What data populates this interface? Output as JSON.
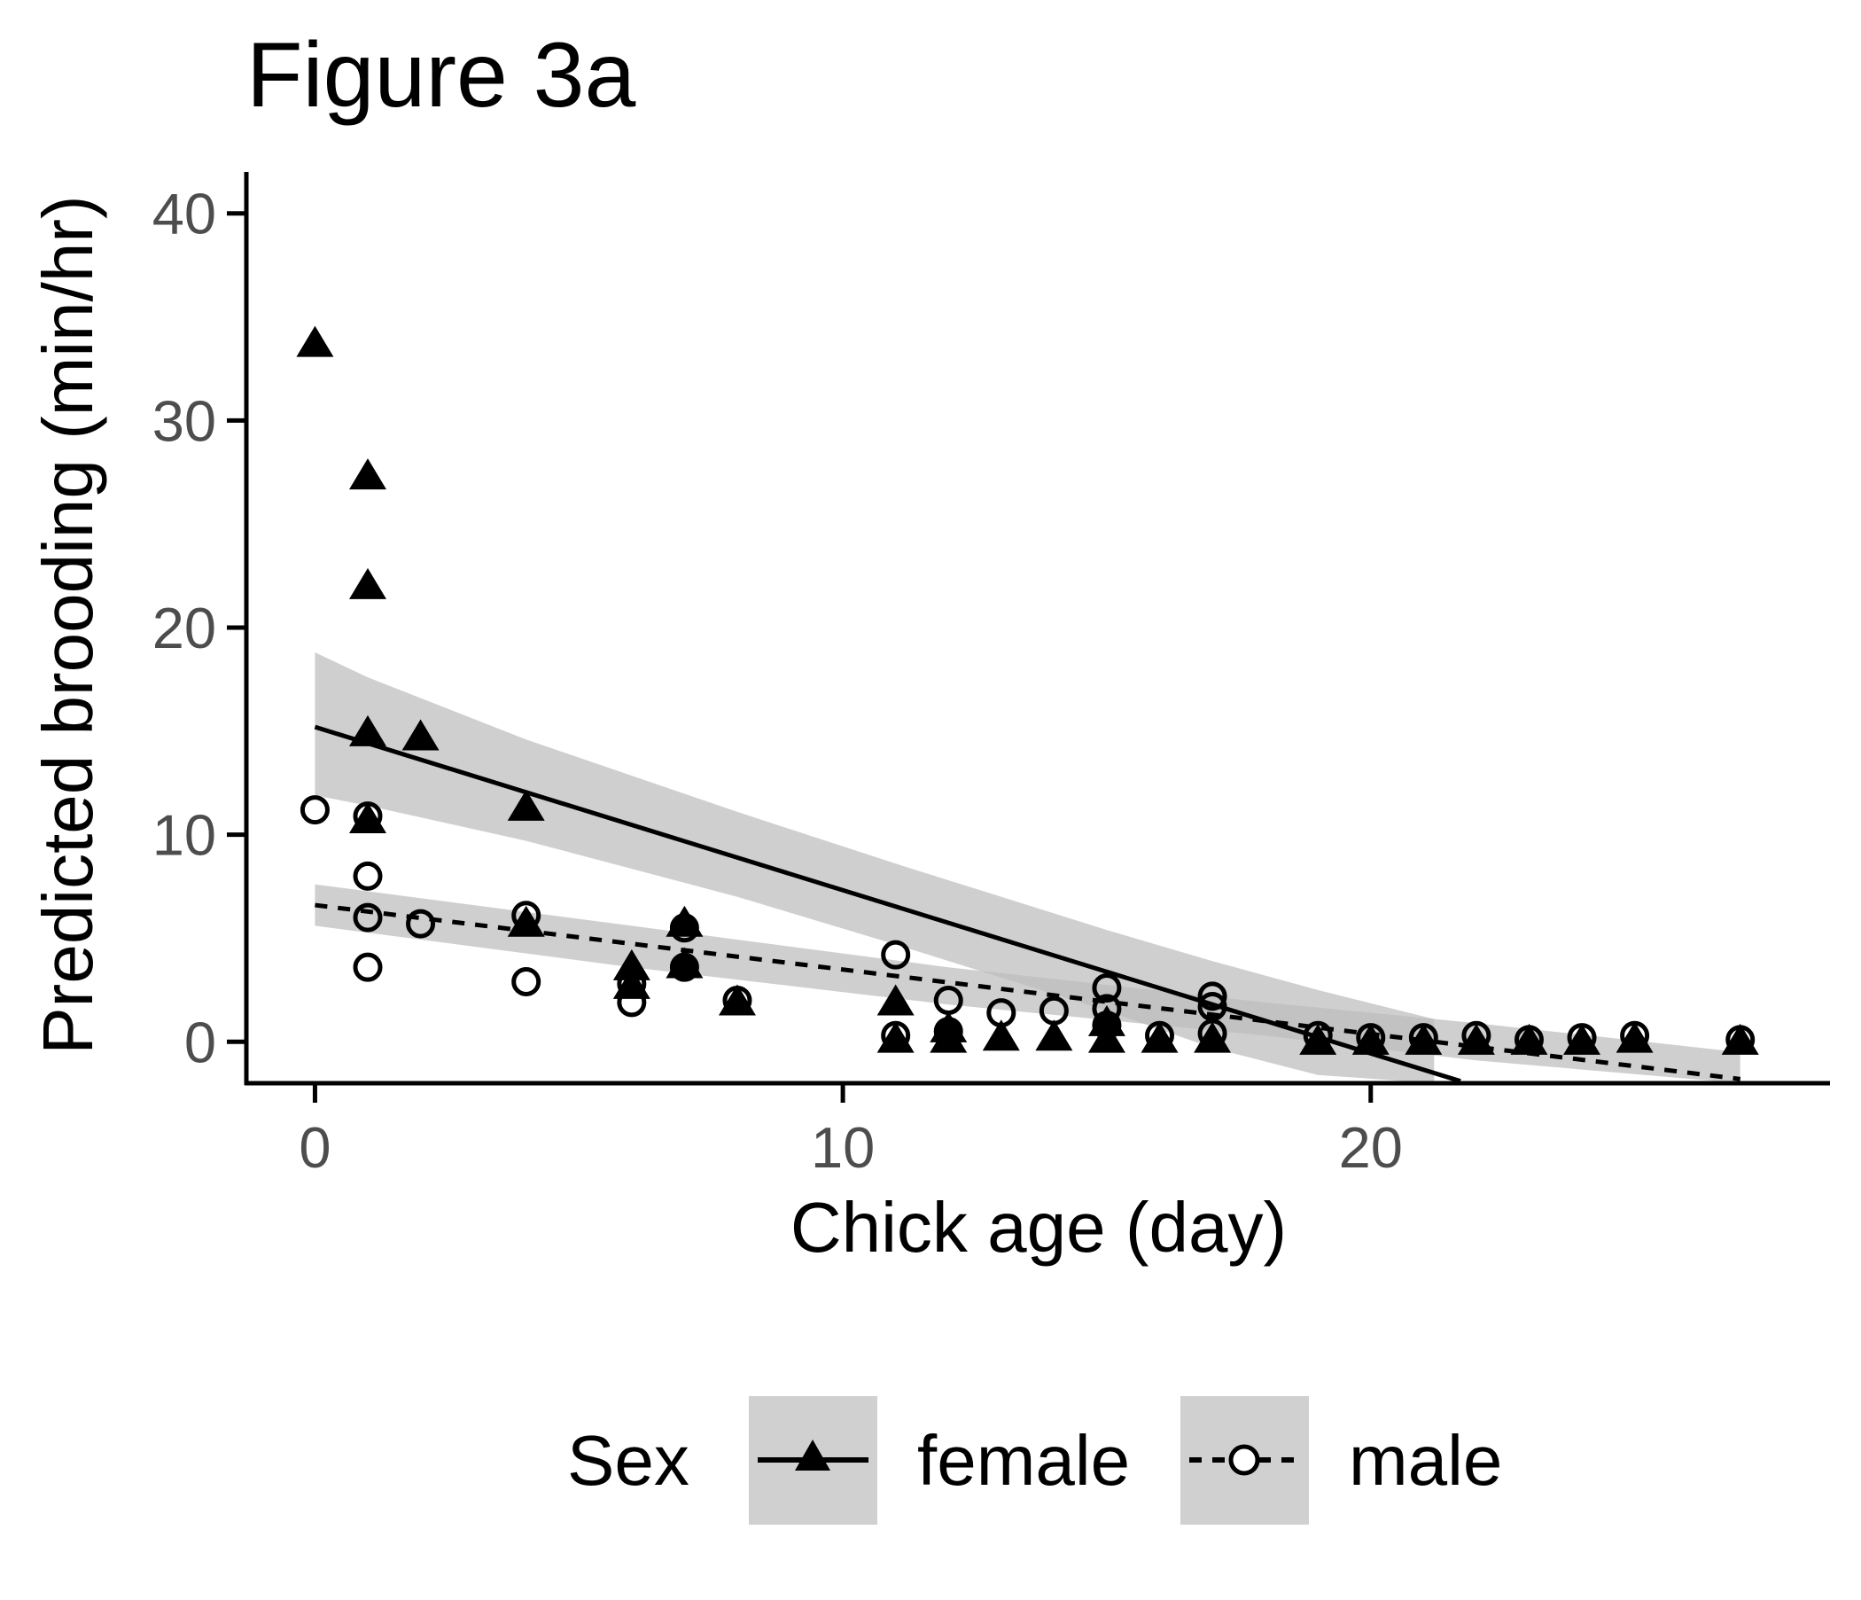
{
  "chart_data": {
    "type": "scatter",
    "title": "Figure 3a",
    "xlabel": "Chick age (day)",
    "ylabel": "Predicted brooding (min/hr)",
    "xlim": [
      -1.3,
      28.7
    ],
    "ylim": [
      -2.0,
      42.0
    ],
    "x_ticks": [
      0,
      10,
      20
    ],
    "y_ticks": [
      0,
      10,
      20,
      30,
      40
    ],
    "grid": false,
    "legend": {
      "title": "Sex",
      "position": "bottom",
      "entries": [
        "female",
        "male"
      ]
    },
    "colors": {
      "ink": "#000000",
      "ribbon": "#bdbdbd",
      "legend_key_bg": "#d0d0d0",
      "tick_text": "#4d4d4d"
    },
    "series": [
      {
        "name": "female",
        "marker": "triangle",
        "line": "solid",
        "points": [
          [
            0,
            33.8
          ],
          [
            1,
            27.4
          ],
          [
            1,
            22.1
          ],
          [
            1,
            15.0
          ],
          [
            1,
            10.8
          ],
          [
            2,
            14.8
          ],
          [
            4,
            11.4
          ],
          [
            4,
            5.8
          ],
          [
            6,
            3.7
          ],
          [
            6,
            2.8
          ],
          [
            7,
            5.8
          ],
          [
            7,
            3.8
          ],
          [
            8,
            2.0
          ],
          [
            11,
            2.0
          ],
          [
            11,
            0.2
          ],
          [
            12,
            0.7
          ],
          [
            12,
            0.2
          ],
          [
            13,
            0.3
          ],
          [
            14,
            0.3
          ],
          [
            15,
            0.2
          ],
          [
            15,
            1.0
          ],
          [
            16,
            0.2
          ],
          [
            17,
            0.2
          ],
          [
            19,
            0.1
          ],
          [
            20,
            0.1
          ],
          [
            21,
            0.1
          ],
          [
            22,
            0.1
          ],
          [
            23,
            0.1
          ],
          [
            24,
            0.1
          ],
          [
            25,
            0.2
          ],
          [
            27,
            0.1
          ]
        ],
        "fit": {
          "x": [
            0,
            21.7
          ],
          "y": [
            15.2,
            -1.9
          ]
        },
        "ci_upper": [
          [
            0,
            18.8
          ],
          [
            1,
            17.6
          ],
          [
            4,
            14.6
          ],
          [
            8,
            11.1
          ],
          [
            11,
            8.6
          ],
          [
            15,
            5.4
          ],
          [
            17,
            3.9
          ],
          [
            19,
            2.5
          ],
          [
            21.2,
            1.1
          ]
        ],
        "ci_lower": [
          [
            21.2,
            -2.0
          ],
          [
            19,
            -1.6
          ],
          [
            17,
            -0.3
          ],
          [
            15,
            1.5
          ],
          [
            11,
            4.7
          ],
          [
            8,
            7.0
          ],
          [
            4,
            9.7
          ],
          [
            1,
            11.4
          ],
          [
            0,
            11.9
          ]
        ]
      },
      {
        "name": "male",
        "marker": "circle",
        "line": "dashed",
        "points": [
          [
            0,
            11.2
          ],
          [
            1,
            10.9
          ],
          [
            1,
            8.0
          ],
          [
            1,
            6.0
          ],
          [
            1,
            3.6
          ],
          [
            2,
            5.7
          ],
          [
            4,
            6.1
          ],
          [
            4,
            2.9
          ],
          [
            6,
            2.8
          ],
          [
            6,
            1.9
          ],
          [
            7,
            5.5
          ],
          [
            7,
            3.6
          ],
          [
            8,
            2.0
          ],
          [
            11,
            4.2
          ],
          [
            11,
            0.3
          ],
          [
            12,
            2.0
          ],
          [
            12,
            0.5
          ],
          [
            13,
            1.4
          ],
          [
            14,
            1.5
          ],
          [
            15,
            2.6
          ],
          [
            15,
            1.6
          ],
          [
            15,
            0.8
          ],
          [
            16,
            0.3
          ],
          [
            17,
            2.2
          ],
          [
            17,
            1.7
          ],
          [
            17,
            0.4
          ],
          [
            19,
            0.3
          ],
          [
            20,
            0.2
          ],
          [
            21,
            0.2
          ],
          [
            22,
            0.3
          ],
          [
            23,
            0.1
          ],
          [
            24,
            0.2
          ],
          [
            25,
            0.3
          ],
          [
            27,
            0.1
          ]
        ],
        "fit": {
          "x": [
            0,
            27
          ],
          "y": [
            6.6,
            -1.8
          ]
        },
        "ci_upper": [
          [
            0,
            7.6
          ],
          [
            6,
            5.6
          ],
          [
            12,
            3.6
          ],
          [
            18,
            1.9
          ],
          [
            22,
            0.9
          ],
          [
            27,
            -0.5
          ]
        ],
        "ci_lower": [
          [
            27,
            -2.0
          ],
          [
            22,
            -0.9
          ],
          [
            18,
            0.3
          ],
          [
            12,
            1.8
          ],
          [
            6,
            3.6
          ],
          [
            0,
            5.6
          ]
        ]
      }
    ]
  }
}
